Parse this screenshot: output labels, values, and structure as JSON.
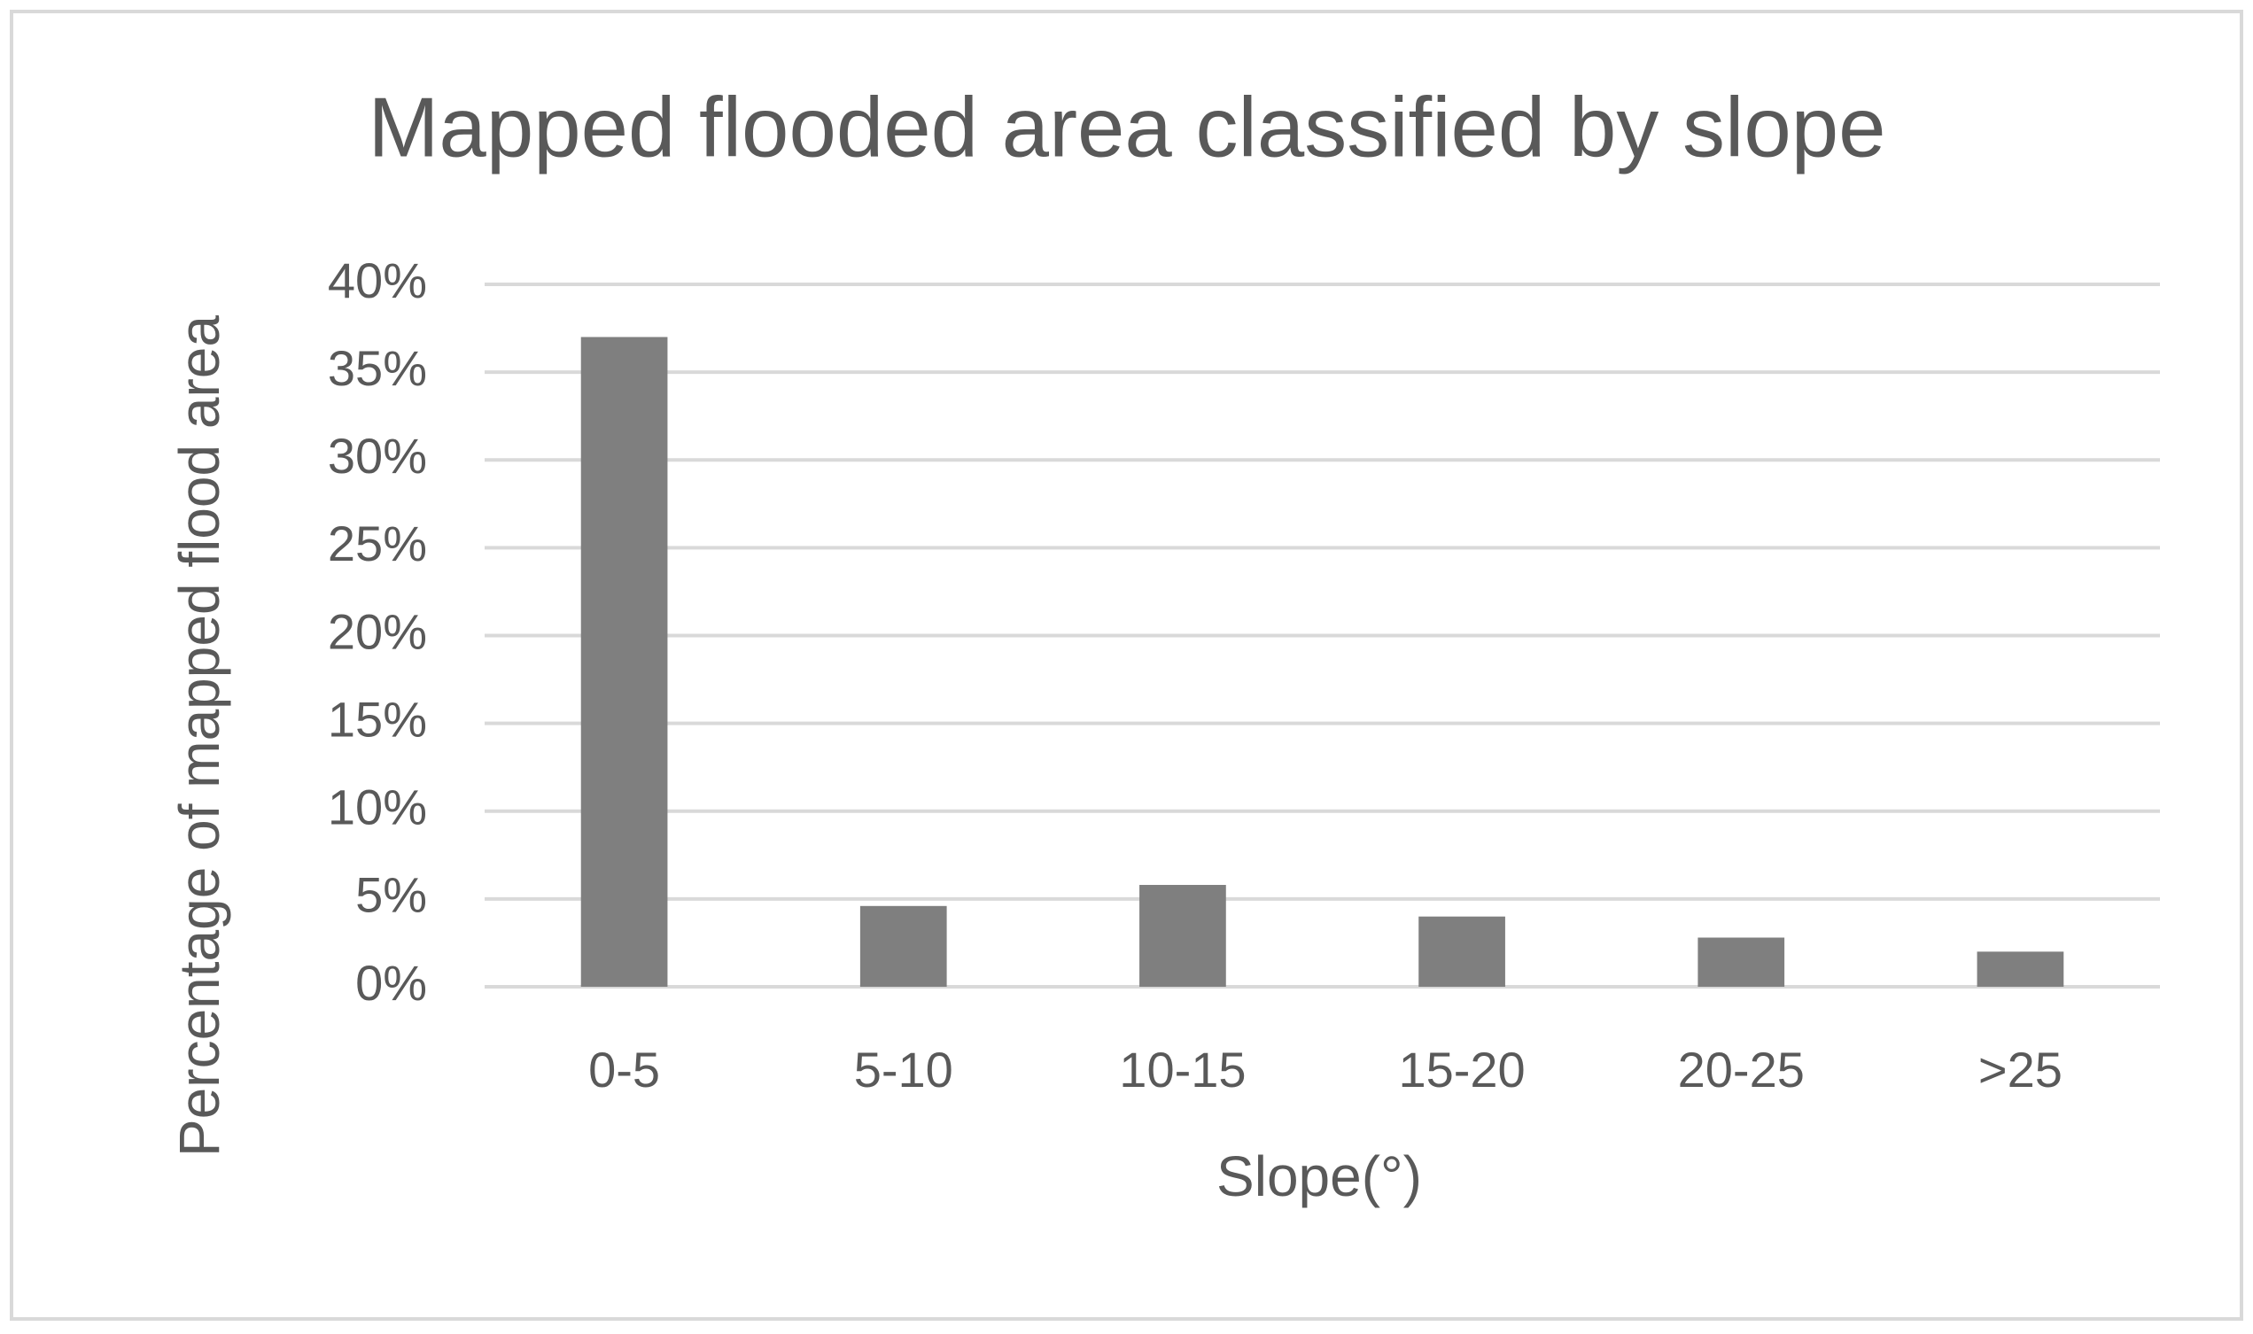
{
  "chart_data": {
    "type": "bar",
    "title": "Mapped flooded area classified by slope",
    "x_label": "Slope(°)",
    "y_label": "Percentage of mapped flood area",
    "categories": [
      "0-5",
      "5-10",
      "10-15",
      "15-20",
      "20-25",
      ">25"
    ],
    "values": [
      37,
      4.6,
      5.8,
      4.0,
      2.8,
      2.0
    ],
    "color": "#7f7f7f",
    "ylim": [
      0,
      40
    ],
    "yticks": [
      {
        "value": 0,
        "label": "0%"
      },
      {
        "value": 5,
        "label": "5%"
      },
      {
        "value": 10,
        "label": "10%"
      },
      {
        "value": 15,
        "label": "15%"
      },
      {
        "value": 20,
        "label": "20%"
      },
      {
        "value": 25,
        "label": "25%"
      },
      {
        "value": 30,
        "label": "30%"
      },
      {
        "value": 35,
        "label": "35%"
      },
      {
        "value": 40,
        "label": "40%"
      }
    ],
    "grid": true
  }
}
